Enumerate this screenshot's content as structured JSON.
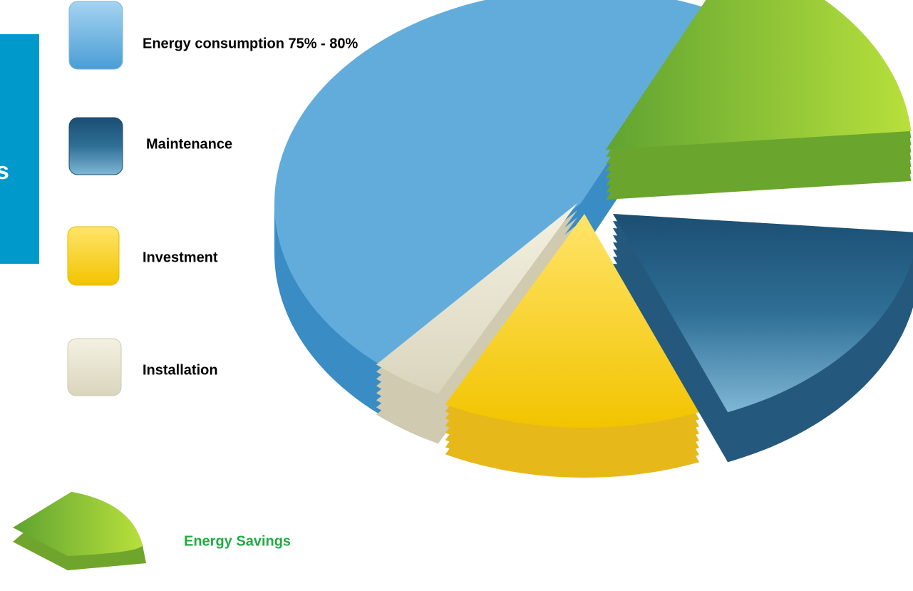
{
  "side_panel": {
    "text": "s"
  },
  "legend": [
    {
      "label": "Energy consumption 75% - 80%"
    },
    {
      "label": "Maintenance"
    },
    {
      "label": "Investment"
    },
    {
      "label": "Installation"
    }
  ],
  "highlight": {
    "label": "Energy Savings"
  }
}
